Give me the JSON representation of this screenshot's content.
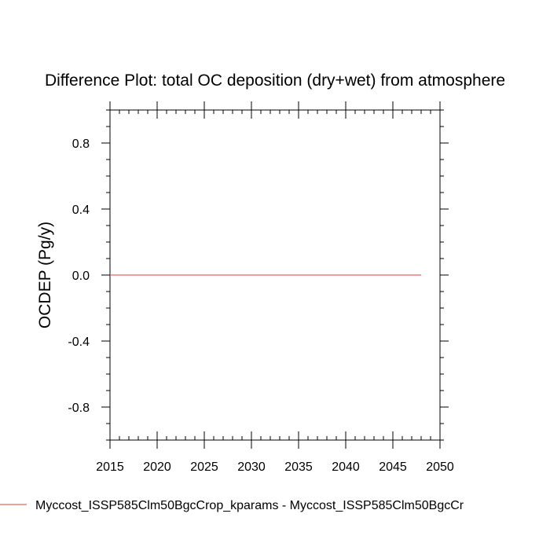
{
  "chart_data": {
    "type": "line",
    "title": "Difference Plot: total OC deposition (dry+wet) from atmosphere",
    "xlabel": "",
    "ylabel": "OCDEP  (Pg/y)",
    "xlim": [
      2015,
      2050
    ],
    "ylim": [
      -1.0,
      1.0
    ],
    "x_ticks": [
      2015,
      2020,
      2025,
      2030,
      2035,
      2040,
      2045,
      2050
    ],
    "x_tick_labels": [
      "2015",
      "2020",
      "2025",
      "2030",
      "2035",
      "2040",
      "2045",
      "2050"
    ],
    "y_ticks": [
      0.8,
      0.4,
      0.0,
      -0.4,
      -0.8
    ],
    "y_tick_labels": [
      "0.8",
      "0.4",
      "0.0",
      "-0.4",
      "-0.8"
    ],
    "y_minor_step": 0.1,
    "x_minor_step": 1,
    "grid": false,
    "legend_position": "bottom",
    "series": [
      {
        "name": "Myccost_ISSP585Clm50BgcCrop_kparams - Myccost_ISSP585Clm50BgcCr",
        "color": "#e06666",
        "x": [
          2015,
          2016,
          2017,
          2018,
          2019,
          2020,
          2021,
          2022,
          2023,
          2024,
          2025,
          2026,
          2027,
          2028,
          2029,
          2030,
          2031,
          2032,
          2033,
          2034,
          2035,
          2036,
          2037,
          2038,
          2039,
          2040,
          2041,
          2042,
          2043,
          2044,
          2045,
          2046,
          2047,
          2048
        ],
        "y": [
          0,
          0,
          0,
          0,
          0,
          0,
          0,
          0,
          0,
          0,
          0,
          0,
          0,
          0,
          0,
          0,
          0,
          0,
          0,
          0,
          0,
          0,
          0,
          0,
          0,
          0,
          0,
          0,
          0,
          0,
          0,
          0,
          0,
          0
        ]
      }
    ]
  }
}
